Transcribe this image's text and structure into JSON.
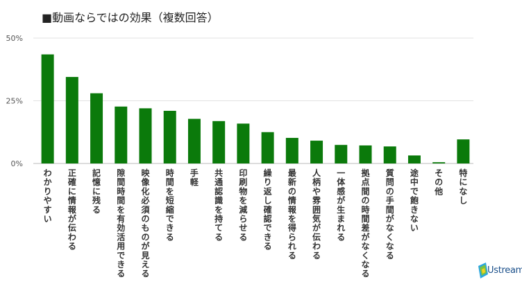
{
  "chart_data": {
    "type": "bar",
    "title": "■動画ならではの効果（複数回答）",
    "xlabel": "",
    "ylabel": "",
    "ylim": [
      0,
      50
    ],
    "yticks": [
      "0%",
      "25%",
      "50%"
    ],
    "ytick_values": [
      0,
      25,
      50
    ],
    "grid": true,
    "bar_color": "#0b7a0b",
    "categories": [
      "わかりやすい",
      "正確に情報が伝わる",
      "記憶に残る",
      "隙間時間を有効活用できる",
      "映像化必須のものが見える",
      "時間を短縮できる",
      "手軽",
      "共通認識を持てる",
      "印刷物を減らせる",
      "繰り返し確認できる",
      "最新の情報を得られる",
      "人柄や雰囲気が伝わる",
      "一体感が生まれる",
      "拠点間の時間差がなくなる",
      "質問の手間がなくなる",
      "途中で飽きない",
      "その他",
      "特になし"
    ],
    "values": [
      43.5,
      34.5,
      28,
      22.7,
      22,
      21,
      17.8,
      16.9,
      15.9,
      12.5,
      10.2,
      9.1,
      7.4,
      7.2,
      6.8,
      3.2,
      0.5,
      9.6
    ]
  },
  "logo": {
    "text": "stream",
    "mark": "U",
    "colors": [
      "#2aa6e0",
      "#f5d21f",
      "#7dc242"
    ]
  }
}
